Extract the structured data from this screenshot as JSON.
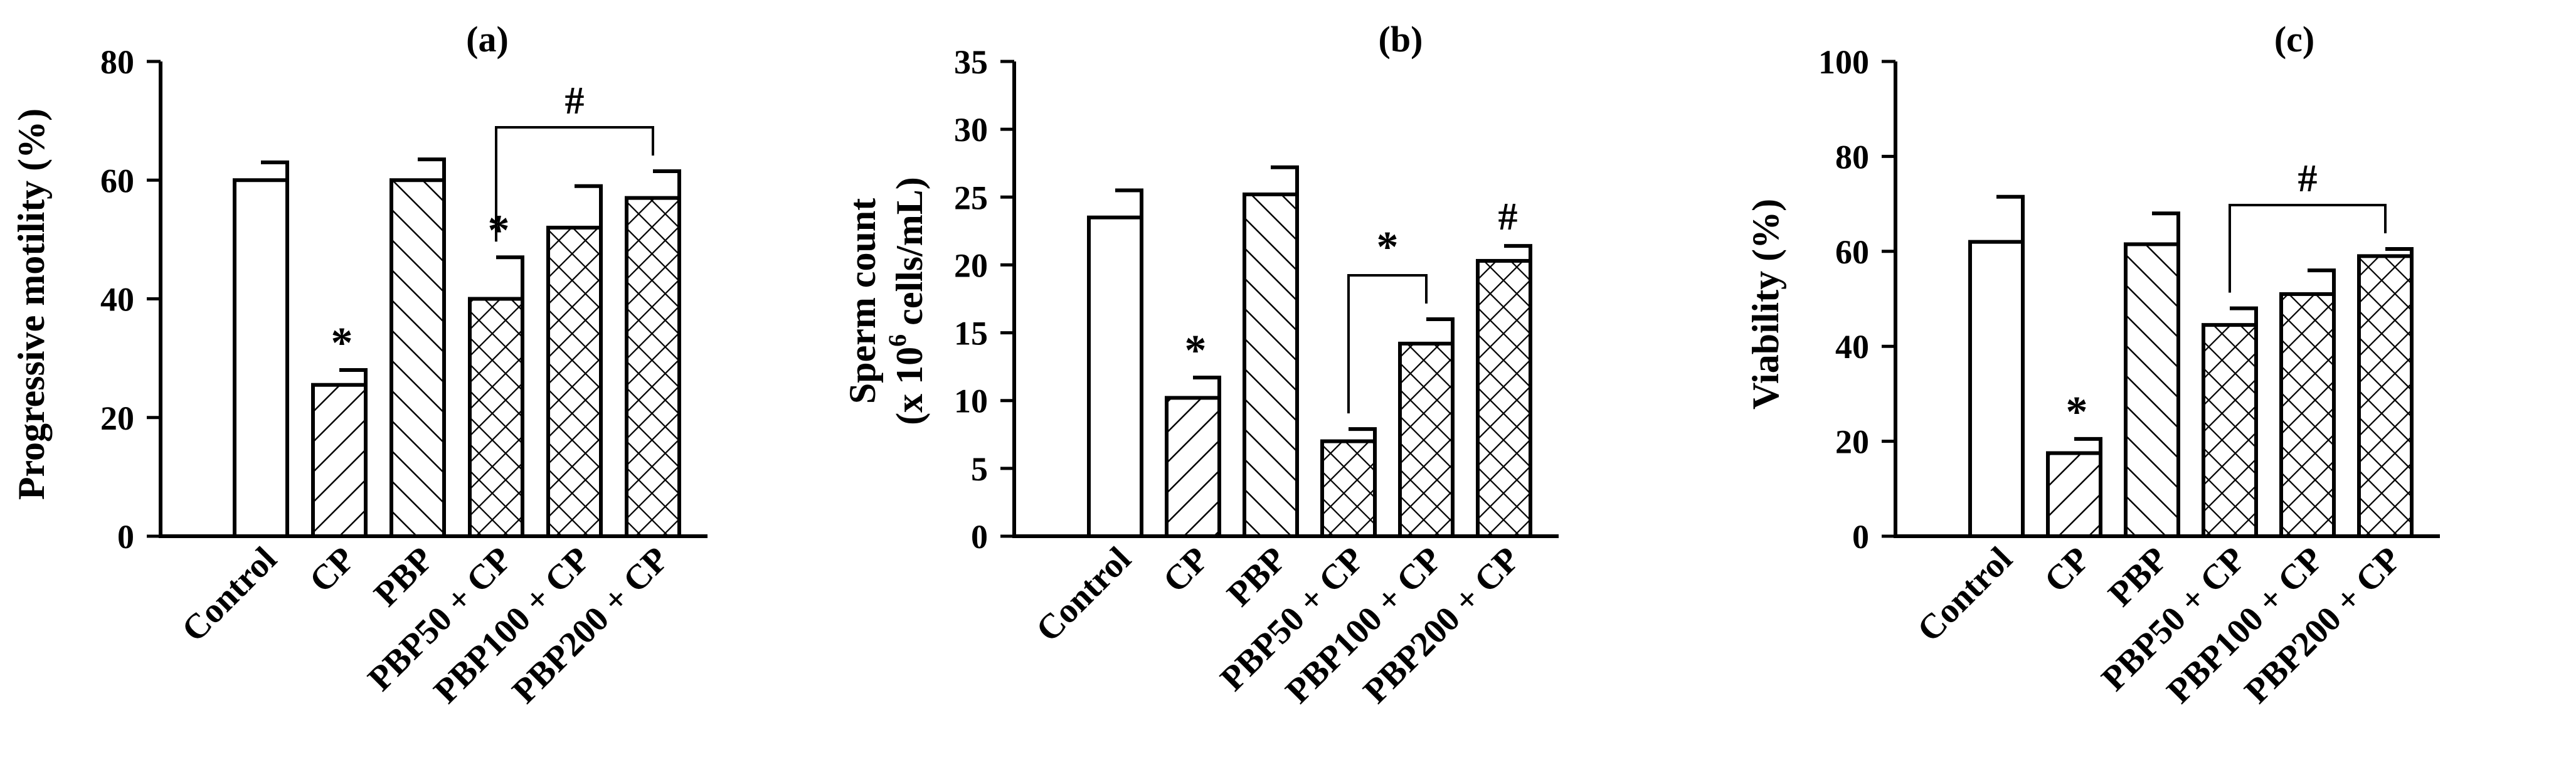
{
  "chart_data": [
    {
      "type": "bar",
      "title": "(a)",
      "ylabel": "Progressive motility (%)",
      "xlabel": "",
      "categories": [
        "Control",
        "CP",
        "PBP",
        "PBP50 + CP",
        "PBP100 + CP",
        "PBP200 + CP"
      ],
      "values": [
        60,
        25.5,
        60,
        40,
        52,
        57
      ],
      "errors": [
        3,
        2.5,
        3.5,
        7,
        7,
        4.5
      ],
      "patterns": [
        "none",
        "back-diagonal",
        "forward-diagonal",
        "crosshatch",
        "crosshatch",
        "crosshatch"
      ],
      "ylim": [
        0,
        80
      ],
      "yticks": [
        0,
        20,
        40,
        60,
        80
      ],
      "markers": [
        {
          "bar": 1,
          "symbol": "*"
        },
        {
          "bar": 3,
          "symbol": "*"
        }
      ],
      "brackets": [
        {
          "from": 3,
          "to": 5,
          "symbol": "#"
        }
      ]
    },
    {
      "type": "bar",
      "title": "(b)",
      "ylabel": "Sperm count",
      "ylabel_line2_prefix": "(x 10",
      "ylabel_line2_sup": "6",
      "ylabel_line2_suffix": "cells/mL)",
      "xlabel": "",
      "categories": [
        "Control",
        "CP",
        "PBP",
        "PBP50 + CP",
        "PBP100 + CP",
        "PBP200 + CP"
      ],
      "values": [
        23.5,
        10.2,
        25.2,
        7,
        14.2,
        20.3
      ],
      "errors": [
        2,
        1.5,
        2.0,
        0.9,
        1.8,
        1.1
      ],
      "patterns": [
        "none",
        "back-diagonal",
        "forward-diagonal",
        "crosshatch",
        "crosshatch",
        "crosshatch"
      ],
      "ylim": [
        0,
        35
      ],
      "yticks": [
        0,
        5,
        10,
        15,
        20,
        25,
        30,
        35
      ],
      "markers": [
        {
          "bar": 1,
          "symbol": "*"
        },
        {
          "bar": 5,
          "symbol": "#"
        }
      ],
      "brackets": [
        {
          "from": 3,
          "to": 4,
          "symbol": "*"
        }
      ]
    },
    {
      "type": "bar",
      "title": "(c)",
      "ylabel": "Viability (%)",
      "xlabel": "",
      "categories": [
        "Control",
        "CP",
        "PBP",
        "PBP50 + CP",
        "PBP100 + CP",
        "PBP200 + CP"
      ],
      "values": [
        62,
        17.5,
        61.5,
        44.5,
        51,
        59
      ],
      "errors": [
        9.5,
        3,
        6.5,
        3.5,
        5,
        1.5
      ],
      "patterns": [
        "none",
        "back-diagonal",
        "forward-diagonal",
        "crosshatch",
        "crosshatch",
        "crosshatch"
      ],
      "ylim": [
        0,
        100
      ],
      "yticks": [
        0,
        20,
        40,
        60,
        80,
        100
      ],
      "markers": [
        {
          "bar": 1,
          "symbol": "*"
        }
      ],
      "brackets": [
        {
          "from": 3,
          "to": 5,
          "symbol": "#"
        }
      ]
    }
  ]
}
